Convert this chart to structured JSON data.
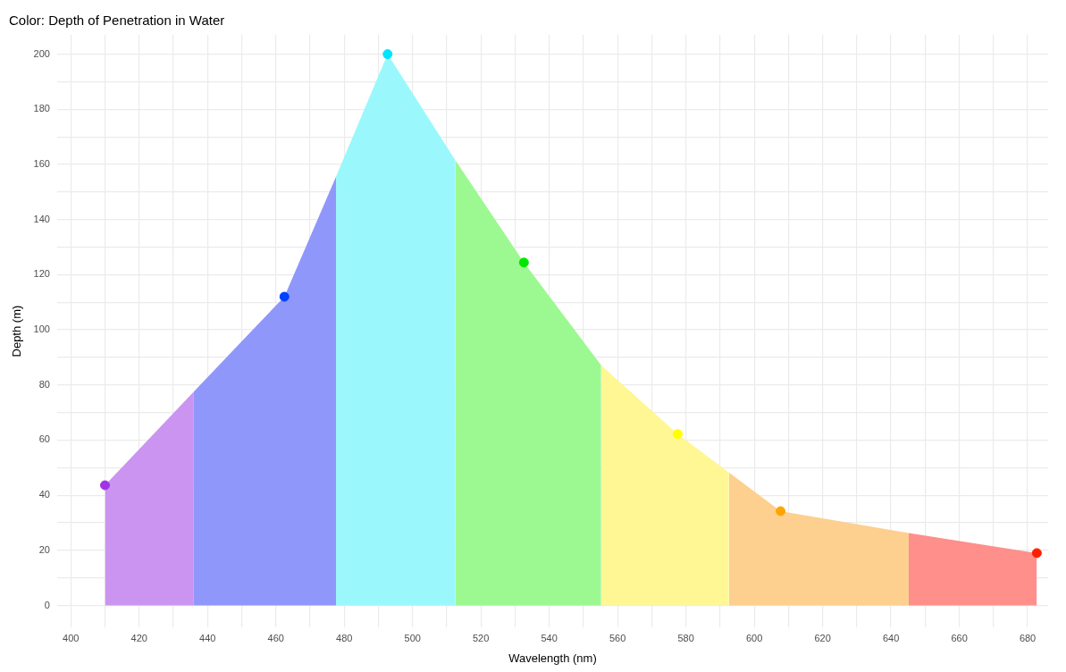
{
  "chart_data": {
    "type": "area",
    "title": "Color: Depth of Penetration in Water",
    "xlabel": "Wavelength (nm)",
    "ylabel": "Depth (m)",
    "xlim": [
      396,
      686
    ],
    "ylim": [
      -8,
      207
    ],
    "xticks": [
      400,
      {
        "value": 410,
        "label": null
      },
      420,
      {
        "value": 430,
        "label": null
      },
      440,
      {
        "value": 450,
        "label": null
      },
      460,
      {
        "value": 470,
        "label": null
      },
      480,
      {
        "value": 490,
        "label": null
      },
      500,
      {
        "value": 510,
        "label": null
      },
      520,
      {
        "value": 530,
        "label": null
      },
      540,
      {
        "value": 550,
        "label": null
      },
      560,
      {
        "value": 570,
        "label": null
      },
      580,
      {
        "value": 590,
        "label": null
      },
      600,
      {
        "value": 610,
        "label": null
      },
      620,
      {
        "value": 630,
        "label": null
      },
      640,
      {
        "value": 650,
        "label": null
      },
      660,
      {
        "value": 670,
        "label": null
      },
      680
    ],
    "yticks": [
      0,
      {
        "value": 10,
        "label": null
      },
      20,
      {
        "value": 30,
        "label": null
      },
      40,
      {
        "value": 50,
        "label": null
      },
      60,
      {
        "value": 70,
        "label": null
      },
      80,
      {
        "value": 90,
        "label": null
      },
      100,
      {
        "value": 110,
        "label": null
      },
      120,
      {
        "value": 130,
        "label": null
      },
      140,
      {
        "value": 150,
        "label": null
      },
      160,
      {
        "value": 170,
        "label": null
      },
      180,
      {
        "value": 190,
        "label": null
      },
      200
    ],
    "grid": true,
    "series": [
      {
        "color": "#cb94f0",
        "x": [
          410,
          436
        ],
        "values": [
          43.6,
          77.6
        ]
      },
      {
        "color": "#9097fb",
        "x": [
          436,
          462.5,
          477.6
        ],
        "values": [
          77.6,
          112,
          155.5
        ]
      },
      {
        "color": "#9af8fd",
        "x": [
          477.6,
          492.7,
          512.6
        ],
        "values": [
          155.5,
          200,
          161.4
        ]
      },
      {
        "color": "#9cf890",
        "x": [
          512.6,
          532.6,
          555.2
        ],
        "values": [
          161.4,
          124.4,
          87.1
        ]
      },
      {
        "color": "#fef794",
        "x": [
          555.2,
          577.6,
          592.6
        ],
        "values": [
          87.1,
          62.2,
          48.2
        ]
      },
      {
        "color": "#fdd08f",
        "x": [
          592.6,
          607.7,
          645.2
        ],
        "values": [
          48.2,
          34.2,
          26.3
        ]
      },
      {
        "color": "#fe8f8b",
        "x": [
          645.2,
          682.7
        ],
        "values": [
          26.3,
          19
        ]
      },
      {
        "type": "scatter",
        "marker": "circle",
        "x": [
          410,
          462.5,
          492.7,
          532.6,
          577.6,
          607.7,
          682.7
        ],
        "values": [
          43.6,
          112,
          200,
          124.4,
          62.2,
          34.2,
          19
        ],
        "colors": [
          "#a033e6",
          "#0040ff",
          "#00e5ff",
          "#00e600",
          "#ffff00",
          "#ffa500",
          "#ff2000"
        ]
      }
    ]
  }
}
